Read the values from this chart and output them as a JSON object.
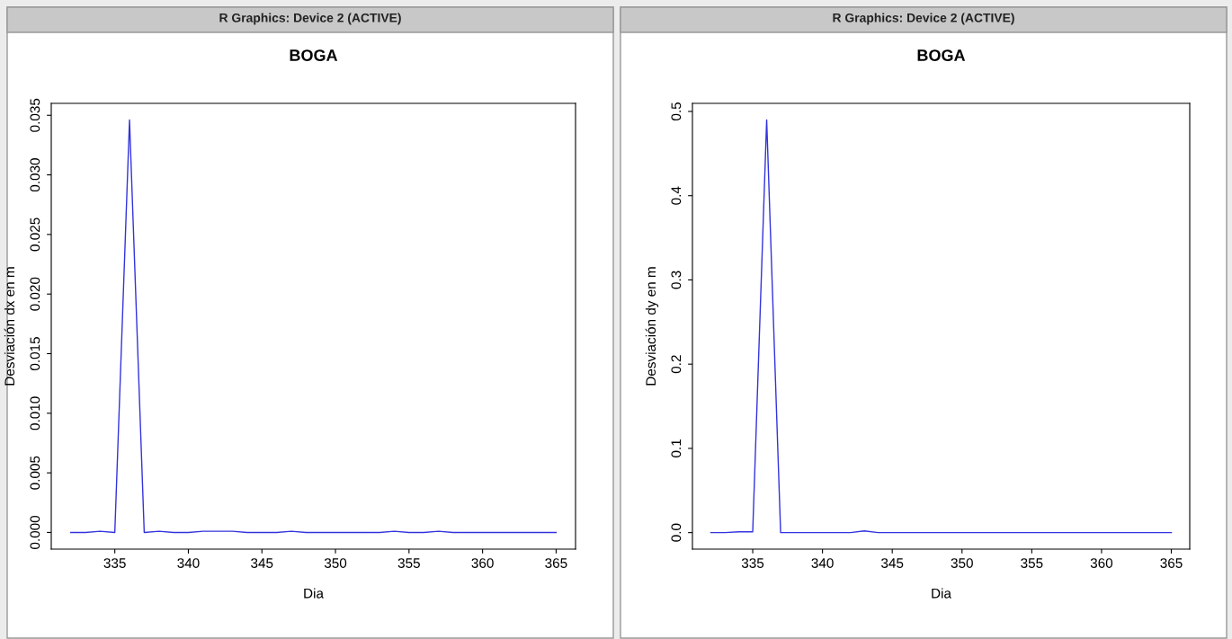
{
  "chart_data": [
    {
      "type": "line",
      "title": "BOGA",
      "xlabel": "Dia",
      "ylabel": "Desviación dx en m",
      "annotations": [
        "R Graphics: Device 2 (ACTIVE)"
      ],
      "x": [
        332,
        333,
        334,
        335,
        336,
        337,
        338,
        339,
        340,
        341,
        342,
        343,
        344,
        345,
        346,
        347,
        348,
        349,
        350,
        351,
        352,
        353,
        354,
        355,
        356,
        357,
        358,
        359,
        360,
        361,
        362,
        363,
        364,
        365
      ],
      "series": [
        {
          "color": "#3333dd",
          "values": [
            0,
            0,
            0.0001,
            0,
            0.0346,
            0,
            0.0001,
            0,
            0,
            0.0001,
            0.0001,
            0.0001,
            0,
            0,
            0,
            0.0001,
            0,
            0,
            0,
            0,
            0,
            0,
            0.0001,
            0,
            0,
            0.0001,
            0,
            0,
            0,
            0,
            0,
            0,
            0,
            0
          ]
        }
      ],
      "xlim": [
        330.68,
        366.32
      ],
      "ylim": [
        -0.0014,
        0.036
      ],
      "xticks": [
        335,
        340,
        345,
        350,
        355,
        360,
        365
      ],
      "yticks": [
        {
          "value": 0,
          "label": "0.000"
        },
        {
          "value": 0.005,
          "label": "0.005"
        },
        {
          "value": 0.01,
          "label": "0.010"
        },
        {
          "value": 0.015,
          "label": "0.015"
        },
        {
          "value": 0.02,
          "label": "0.020"
        },
        {
          "value": 0.025,
          "label": "0.025"
        },
        {
          "value": 0.03,
          "label": "0.030"
        },
        {
          "value": 0.035,
          "label": "0.035"
        }
      ],
      "grid": false,
      "line_style": "solid"
    },
    {
      "type": "line",
      "title": "BOGA",
      "xlabel": "Dia",
      "ylabel": "Desviación dy en m",
      "annotations": [
        "R Graphics: Device 2 (ACTIVE)"
      ],
      "x": [
        332,
        333,
        334,
        335,
        336,
        337,
        338,
        339,
        340,
        341,
        342,
        343,
        344,
        345,
        346,
        347,
        348,
        349,
        350,
        351,
        352,
        353,
        354,
        355,
        356,
        357,
        358,
        359,
        360,
        361,
        362,
        363,
        364,
        365
      ],
      "series": [
        {
          "color": "#3333dd",
          "values": [
            0,
            0,
            0.001,
            0.001,
            0.49,
            0,
            0,
            0,
            0,
            0,
            0,
            0.002,
            0,
            0,
            0,
            0,
            0,
            0,
            0,
            0,
            0,
            0,
            0,
            0,
            0,
            0,
            0,
            0,
            0,
            0,
            0,
            0,
            0,
            0
          ]
        }
      ],
      "xlim": [
        330.68,
        366.32
      ],
      "ylim": [
        -0.0196,
        0.5096
      ],
      "xticks": [
        335,
        340,
        345,
        350,
        355,
        360,
        365
      ],
      "yticks": [
        {
          "value": 0,
          "label": "0.0"
        },
        {
          "value": 0.1,
          "label": "0.1"
        },
        {
          "value": 0.2,
          "label": "0.2"
        },
        {
          "value": 0.3,
          "label": "0.3"
        },
        {
          "value": 0.4,
          "label": "0.4"
        },
        {
          "value": 0.5,
          "label": "0.5"
        }
      ],
      "grid": false,
      "line_style": "solid"
    }
  ]
}
